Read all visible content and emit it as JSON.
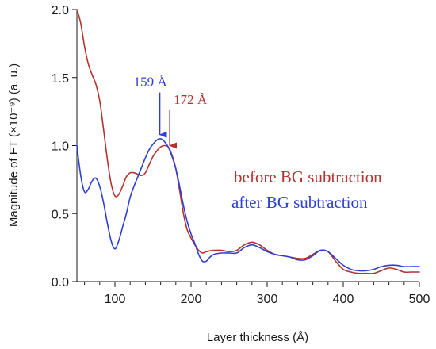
{
  "chart_data": {
    "type": "line",
    "xlabel": "Layer thickness (Å)",
    "ylabel": "Magnitude of FT (×10⁻⁹) (a. u.)",
    "xlim": [
      50,
      500
    ],
    "ylim": [
      0,
      2.0
    ],
    "x_ticks": [
      100,
      200,
      300,
      400,
      500
    ],
    "y_ticks": [
      0.0,
      0.5,
      1.0,
      1.5,
      2.0
    ],
    "grid": false,
    "legend_position": "middle-right",
    "series": [
      {
        "name": "before BG subtraction",
        "color": "#b5322e",
        "points": [
          [
            50,
            2.0
          ],
          [
            55,
            1.9
          ],
          [
            60,
            1.73
          ],
          [
            65,
            1.6
          ],
          [
            70,
            1.52
          ],
          [
            75,
            1.45
          ],
          [
            80,
            1.33
          ],
          [
            85,
            1.12
          ],
          [
            90,
            0.9
          ],
          [
            95,
            0.72
          ],
          [
            100,
            0.63
          ],
          [
            105,
            0.64
          ],
          [
            110,
            0.7
          ],
          [
            115,
            0.77
          ],
          [
            120,
            0.8
          ],
          [
            125,
            0.8
          ],
          [
            130,
            0.79
          ],
          [
            135,
            0.78
          ],
          [
            140,
            0.8
          ],
          [
            145,
            0.86
          ],
          [
            150,
            0.92
          ],
          [
            155,
            0.96
          ],
          [
            160,
            0.99
          ],
          [
            165,
            1.0
          ],
          [
            170,
            0.99
          ],
          [
            175,
            0.93
          ],
          [
            180,
            0.83
          ],
          [
            185,
            0.67
          ],
          [
            190,
            0.5
          ],
          [
            195,
            0.38
          ],
          [
            200,
            0.32
          ],
          [
            205,
            0.27
          ],
          [
            210,
            0.23
          ],
          [
            215,
            0.21
          ],
          [
            220,
            0.22
          ],
          [
            230,
            0.23
          ],
          [
            240,
            0.23
          ],
          [
            250,
            0.22
          ],
          [
            260,
            0.23
          ],
          [
            270,
            0.27
          ],
          [
            280,
            0.29
          ],
          [
            290,
            0.27
          ],
          [
            300,
            0.23
          ],
          [
            310,
            0.2
          ],
          [
            320,
            0.19
          ],
          [
            330,
            0.18
          ],
          [
            340,
            0.17
          ],
          [
            350,
            0.17
          ],
          [
            360,
            0.2
          ],
          [
            370,
            0.23
          ],
          [
            380,
            0.22
          ],
          [
            390,
            0.15
          ],
          [
            400,
            0.09
          ],
          [
            410,
            0.07
          ],
          [
            420,
            0.06
          ],
          [
            430,
            0.06
          ],
          [
            440,
            0.06
          ],
          [
            450,
            0.08
          ],
          [
            460,
            0.1
          ],
          [
            470,
            0.09
          ],
          [
            480,
            0.07
          ],
          [
            490,
            0.07
          ],
          [
            500,
            0.07
          ]
        ]
      },
      {
        "name": "after BG subtraction",
        "color": "#2c3fd6",
        "points": [
          [
            50,
            1.0
          ],
          [
            55,
            0.78
          ],
          [
            60,
            0.66
          ],
          [
            65,
            0.68
          ],
          [
            70,
            0.74
          ],
          [
            75,
            0.76
          ],
          [
            80,
            0.7
          ],
          [
            85,
            0.58
          ],
          [
            90,
            0.43
          ],
          [
            95,
            0.3
          ],
          [
            100,
            0.24
          ],
          [
            105,
            0.3
          ],
          [
            110,
            0.4
          ],
          [
            115,
            0.5
          ],
          [
            120,
            0.62
          ],
          [
            125,
            0.7
          ],
          [
            130,
            0.77
          ],
          [
            135,
            0.84
          ],
          [
            140,
            0.91
          ],
          [
            145,
            0.97
          ],
          [
            150,
            1.01
          ],
          [
            155,
            1.04
          ],
          [
            160,
            1.05
          ],
          [
            165,
            1.03
          ],
          [
            170,
            0.99
          ],
          [
            175,
            0.92
          ],
          [
            180,
            0.83
          ],
          [
            185,
            0.7
          ],
          [
            190,
            0.56
          ],
          [
            195,
            0.44
          ],
          [
            200,
            0.35
          ],
          [
            205,
            0.28
          ],
          [
            210,
            0.2
          ],
          [
            215,
            0.15
          ],
          [
            220,
            0.15
          ],
          [
            225,
            0.18
          ],
          [
            230,
            0.2
          ],
          [
            240,
            0.21
          ],
          [
            250,
            0.21
          ],
          [
            260,
            0.21
          ],
          [
            270,
            0.25
          ],
          [
            280,
            0.27
          ],
          [
            290,
            0.25
          ],
          [
            300,
            0.22
          ],
          [
            310,
            0.2
          ],
          [
            320,
            0.19
          ],
          [
            330,
            0.18
          ],
          [
            340,
            0.16
          ],
          [
            350,
            0.16
          ],
          [
            360,
            0.19
          ],
          [
            370,
            0.23
          ],
          [
            380,
            0.22
          ],
          [
            390,
            0.17
          ],
          [
            400,
            0.12
          ],
          [
            410,
            0.09
          ],
          [
            420,
            0.08
          ],
          [
            430,
            0.08
          ],
          [
            440,
            0.09
          ],
          [
            450,
            0.11
          ],
          [
            460,
            0.12
          ],
          [
            470,
            0.12
          ],
          [
            480,
            0.11
          ],
          [
            490,
            0.11
          ],
          [
            500,
            0.11
          ]
        ]
      }
    ],
    "annotations": [
      {
        "text": "159 Å",
        "x": 159,
        "arrow_top_y": 1.39,
        "arrow_tip_y": 1.08,
        "color": "#2c3fd6"
      },
      {
        "text": "172 Å",
        "x": 172,
        "arrow_top_y": 1.26,
        "arrow_tip_y": 1.0,
        "color": "#b5322e"
      }
    ]
  }
}
